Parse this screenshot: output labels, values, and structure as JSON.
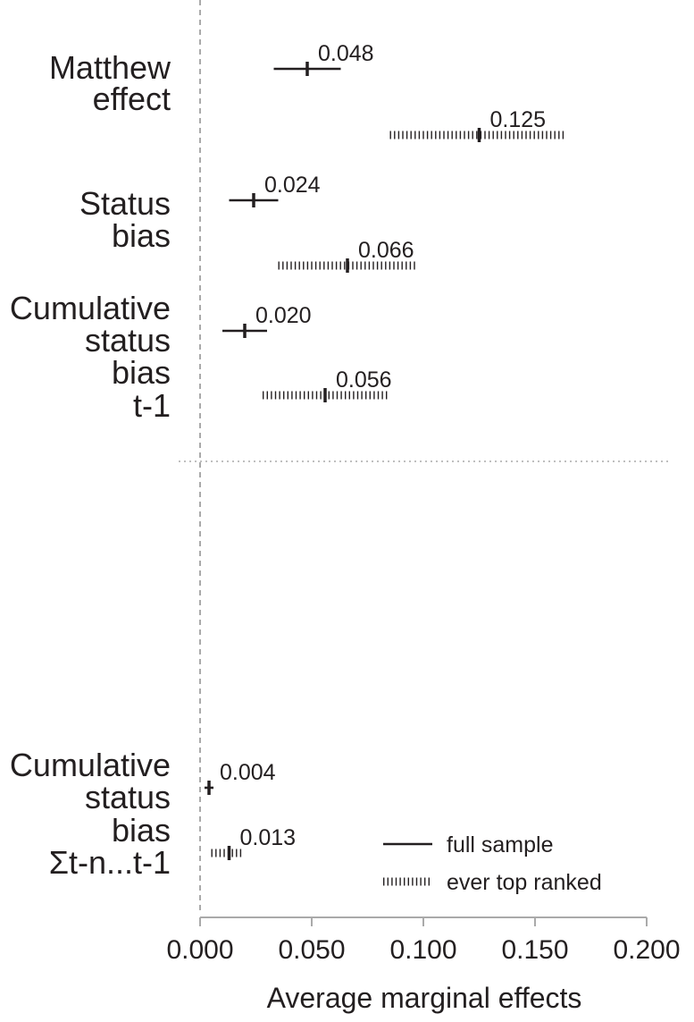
{
  "chart_data": {
    "type": "forest",
    "xlabel": "Average marginal effects",
    "xlim": [
      0,
      0.2
    ],
    "x_ticks": [
      "0.000",
      "0.050",
      "0.100",
      "0.150",
      "0.200"
    ],
    "groups": [
      {
        "label_lines": [
          "Matthew",
          "effect"
        ],
        "full": {
          "estimate": 0.048,
          "ci": [
            0.033,
            0.063
          ],
          "label": "0.048"
        },
        "top": {
          "estimate": 0.125,
          "ci": [
            0.085,
            0.163
          ],
          "label": "0.125"
        }
      },
      {
        "label_lines": [
          "Status",
          "bias"
        ],
        "full": {
          "estimate": 0.024,
          "ci": [
            0.013,
            0.035
          ],
          "label": "0.024"
        },
        "top": {
          "estimate": 0.066,
          "ci": [
            0.035,
            0.097
          ],
          "label": "0.066"
        }
      },
      {
        "label_lines": [
          "Cumulative",
          "status",
          "bias",
          "t-1"
        ],
        "full": {
          "estimate": 0.02,
          "ci": [
            0.01,
            0.03
          ],
          "label": "0.020"
        },
        "top": {
          "estimate": 0.056,
          "ci": [
            0.028,
            0.084
          ],
          "label": "0.056"
        }
      },
      {
        "label_lines": [
          "Cumulative",
          "status",
          "bias",
          "Σt-n...t-1"
        ],
        "full": {
          "estimate": 0.004,
          "ci": [
            0.002,
            0.006
          ],
          "label": "0.004"
        },
        "top": {
          "estimate": 0.013,
          "ci": [
            0.005,
            0.019
          ],
          "label": "0.013"
        }
      }
    ],
    "legend": {
      "position": "bottom-right",
      "entries": [
        {
          "key": "full",
          "label": "full sample",
          "style": "solid"
        },
        {
          "key": "top",
          "label": "ever top ranked",
          "style": "dotted"
        }
      ]
    },
    "reference_line": {
      "x": 0,
      "style": "dashed"
    },
    "separator": "dotted horizontal line between upper and lower panels",
    "colors": {
      "ink": "#231f20",
      "reference": "#aaaaaa"
    }
  }
}
